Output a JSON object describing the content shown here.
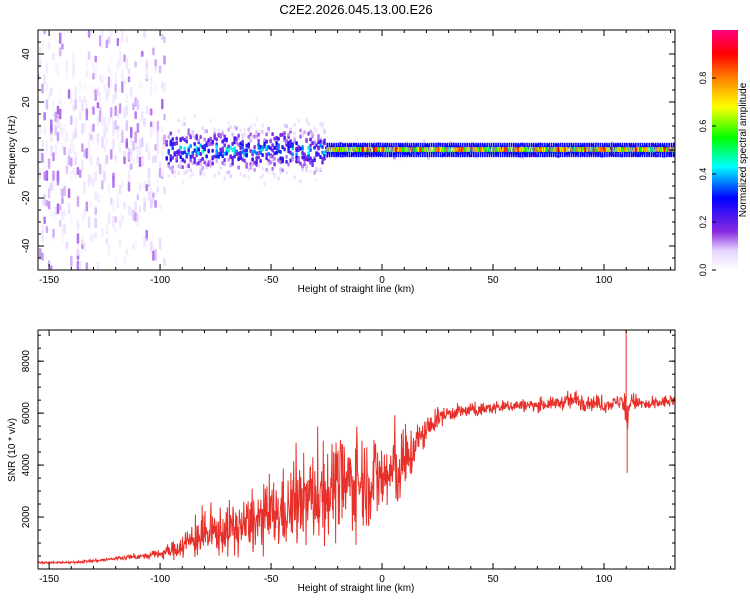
{
  "chart_data": [
    {
      "type": "heatmap",
      "title": "C2E2.2026.045.13.00.E26",
      "xlabel": "Height of straight line (km)",
      "ylabel": "Frequency (Hz)",
      "xlim": [
        -155,
        132
      ],
      "ylim": [
        -50,
        50
      ],
      "xticks": [
        -150,
        -100,
        -50,
        0,
        50,
        100
      ],
      "yticks": [
        -40,
        -20,
        0,
        20,
        40
      ],
      "colorbar": {
        "label": "Normalized spectral amplitude",
        "range": [
          0.0,
          1.0
        ],
        "ticks": [
          0.0,
          0.2,
          0.4,
          0.6,
          0.8
        ],
        "tick_labels": [
          "0.0",
          "0.2",
          "0.4",
          "0.6",
          "0.8"
        ],
        "colors": [
          "#ffffff",
          "#8a2be2",
          "#0000ff",
          "#00ffff",
          "#00ff00",
          "#ffff00",
          "#ff8000",
          "#ff0000",
          "#ff0080"
        ]
      },
      "description_regions": [
        {
          "x_range": [
            -155,
            -97
          ],
          "spread_hz": 50,
          "amplitude": 0.12
        },
        {
          "x_range": [
            -97,
            -25
          ],
          "spread_hz": 12,
          "amplitude": 0.45
        },
        {
          "x_range": [
            -25,
            132
          ],
          "spread_hz": 3,
          "amplitude": 0.8
        }
      ]
    },
    {
      "type": "line",
      "title": "",
      "xlabel": "Height of straight line (km)",
      "ylabel": "SNR (10 * v/v)",
      "xlim": [
        -155,
        132
      ],
      "ylim": [
        0,
        9200
      ],
      "xticks": [
        -150,
        -100,
        -50,
        0,
        50,
        100
      ],
      "yticks": [
        2000,
        4000,
        6000,
        8000
      ],
      "series": [
        {
          "name": "SNR",
          "color": "#e8302a",
          "x": [
            -155,
            -140,
            -125,
            -115,
            -105,
            -95,
            -88,
            -80,
            -70,
            -60,
            -50,
            -40,
            -30,
            -20,
            -10,
            0,
            10,
            15,
            20,
            25,
            30,
            40,
            50,
            60,
            70,
            80,
            88,
            95,
            100,
            105,
            108,
            110,
            112,
            115,
            120,
            125,
            132
          ],
          "y": [
            250,
            250,
            350,
            450,
            500,
            700,
            1000,
            1300,
            1500,
            1700,
            2000,
            2400,
            2800,
            3200,
            3400,
            3500,
            3900,
            4800,
            5300,
            5800,
            6000,
            6100,
            6200,
            6300,
            6300,
            6400,
            6500,
            6400,
            6300,
            6400,
            6500,
            5800,
            6500,
            6400,
            6300,
            6400,
            6500
          ],
          "noise": [
            30,
            30,
            60,
            80,
            100,
            250,
            500,
            700,
            800,
            900,
            1100,
            1300,
            1500,
            1600,
            1500,
            1400,
            1100,
            700,
            450,
            300,
            250,
            220,
            200,
            200,
            200,
            200,
            350,
            250,
            220,
            200,
            300,
            900,
            300,
            250,
            200,
            200,
            200
          ]
        }
      ]
    }
  ]
}
